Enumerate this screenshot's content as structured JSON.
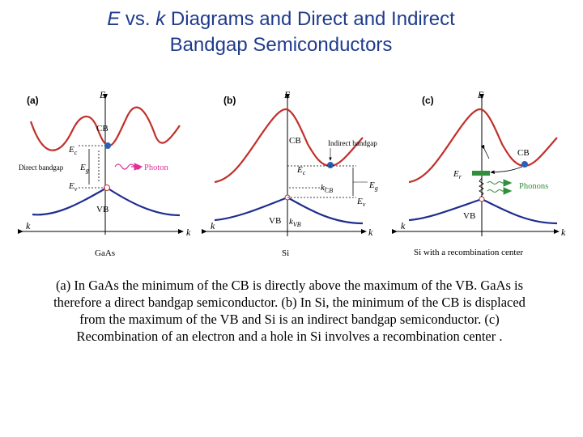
{
  "title": {
    "line1_e": "E",
    "line1_vs": " vs. ",
    "line1_k": "k",
    "line1_rest": " Diagrams and Direct and Indirect",
    "line2": "Bandgap Semiconductors"
  },
  "panels": {
    "a": {
      "tag": "(a)",
      "axis_e": "E",
      "axis_k_left": "k",
      "axis_k_right": "k",
      "cb": "CB",
      "vb": "VB",
      "ec": "E",
      "ec_sub": "c",
      "ev": "E",
      "ev_sub": "v",
      "eg": "E",
      "eg_sub": "g",
      "direct_bandgap": "Direct bandgap",
      "photon": "Photon",
      "material": "GaAs"
    },
    "b": {
      "tag": "(b)",
      "axis_e": "E",
      "axis_k_left": "k",
      "axis_k_right": "k",
      "cb": "CB",
      "vb": "VB",
      "ec": "E",
      "ec_sub": "c",
      "ev": "E",
      "ev_sub": "v",
      "eg": "E",
      "eg_sub": "g",
      "indirect_bandgap": "Indirect bandgap",
      "kcb": "k",
      "kcb_sub": "CB",
      "kvb": "k",
      "kvb_sub": "VB",
      "material": "Si"
    },
    "c": {
      "tag": "(c)",
      "axis_e": "E",
      "axis_k_left": "k",
      "axis_k_right": "k",
      "cb": "CB",
      "vb": "VB",
      "er": "E",
      "er_sub": "r",
      "phonons": "Phonons",
      "material": "Si with a recombination center"
    }
  },
  "caption": {
    "line1": "(a) In GaAs the minimum of the CB is directly above the maximum of the VB. GaAs is",
    "line2": "therefore a direct bandgap semiconductor. (b) In Si, the minimum of the CB is displaced",
    "line3": "from the maximum of the VB and Si is an indirect bandgap semiconductor. (c)",
    "line4": "Recombination of an electron and a hole in Si involves a recombination center ."
  },
  "colors": {
    "title": "#1f3b8c",
    "cb_curve": "#c0302b",
    "vb_curve": "#1f2d8f",
    "electron": "#2b5fb5",
    "photon": "#e0309c",
    "phonons": "#2f8f3a"
  }
}
